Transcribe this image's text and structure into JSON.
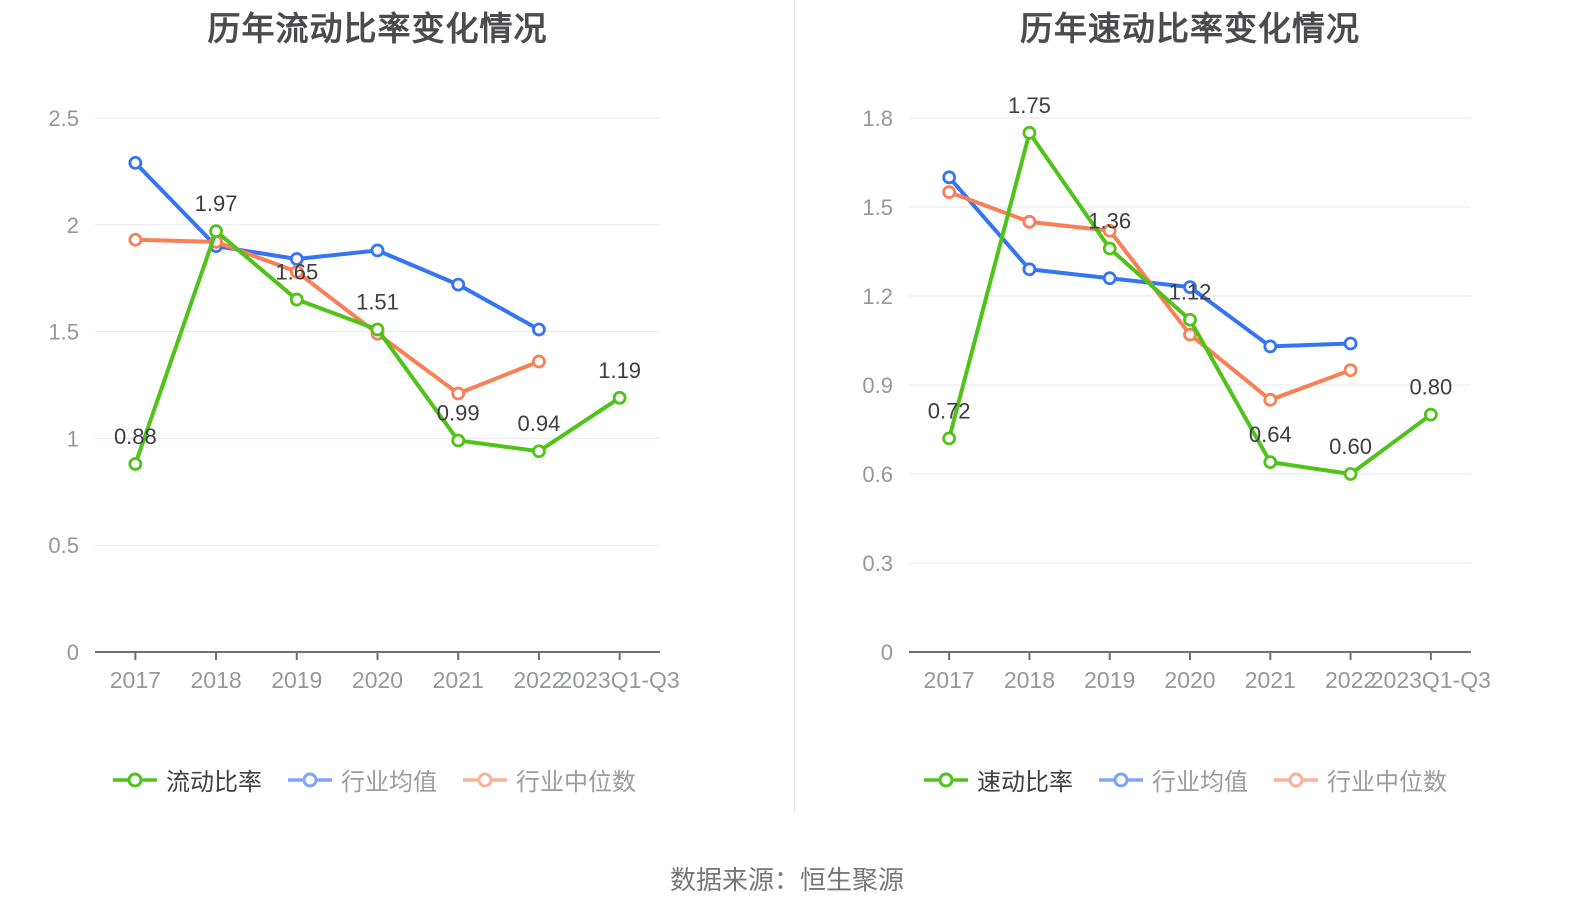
{
  "chart_data": [
    {
      "type": "line",
      "title": "历年流动比率变化情况",
      "categories": [
        "2017",
        "2018",
        "2019",
        "2020",
        "2021",
        "2022",
        "2023Q1-Q3"
      ],
      "ylim": [
        0,
        2.5
      ],
      "y_ticks": [
        "0",
        "0.5",
        "1",
        "1.5",
        "2",
        "2.5"
      ],
      "grid": true,
      "legend_position": "bottom",
      "series": [
        {
          "name": "流动比率",
          "slug": "current-ratio",
          "color": "#4fc31a",
          "legend_color": "#4fc31a",
          "values": [
            0.88,
            1.97,
            1.65,
            1.51,
            0.99,
            0.94,
            1.19
          ],
          "data_labels": [
            "0.88",
            "1.97",
            "1.65",
            "1.51",
            "0.99",
            "0.94",
            "1.19"
          ]
        },
        {
          "name": "行业均值",
          "slug": "industry-average",
          "color": "#3575f2",
          "legend_color": "#7ea6f8",
          "values": [
            2.29,
            1.9,
            1.84,
            1.88,
            1.72,
            1.51,
            null
          ],
          "data_labels": null
        },
        {
          "name": "行业中位数",
          "slug": "industry-median",
          "color": "#f98056",
          "legend_color": "#f9b197",
          "values": [
            1.93,
            1.92,
            1.78,
            1.49,
            1.21,
            1.36,
            null
          ],
          "data_labels": null
        }
      ]
    },
    {
      "type": "line",
      "title": "历年速动比率变化情况",
      "categories": [
        "2017",
        "2018",
        "2019",
        "2020",
        "2021",
        "2022",
        "2023Q1-Q3"
      ],
      "ylim": [
        0,
        1.8
      ],
      "y_ticks": [
        "0",
        "0.3",
        "0.6",
        "0.9",
        "1.2",
        "1.5",
        "1.8"
      ],
      "grid": true,
      "legend_position": "bottom",
      "series": [
        {
          "name": "速动比率",
          "slug": "quick-ratio",
          "color": "#4fc31a",
          "legend_color": "#4fc31a",
          "values": [
            0.72,
            1.75,
            1.36,
            1.12,
            0.64,
            0.6,
            0.8
          ],
          "data_labels": [
            "0.72",
            "1.75",
            "1.36",
            "1.12",
            "0.64",
            "0.60",
            "0.80"
          ]
        },
        {
          "name": "行业均值",
          "slug": "industry-average",
          "color": "#3575f2",
          "legend_color": "#7ea6f8",
          "values": [
            1.6,
            1.29,
            1.26,
            1.23,
            1.03,
            1.04,
            null
          ],
          "data_labels": null
        },
        {
          "name": "行业中位数",
          "slug": "industry-median",
          "color": "#f98056",
          "legend_color": "#f9b197",
          "values": [
            1.55,
            1.45,
            1.42,
            1.07,
            0.85,
            0.95,
            null
          ],
          "data_labels": null
        }
      ]
    }
  ],
  "footer": {
    "source": "数据来源：恒生聚源"
  }
}
